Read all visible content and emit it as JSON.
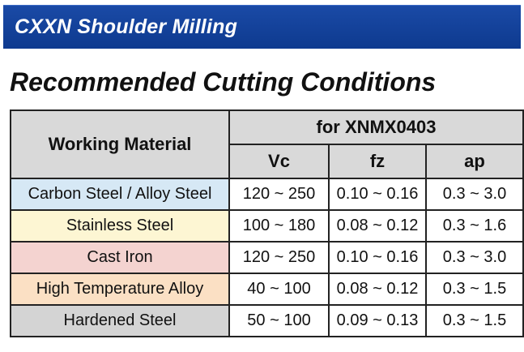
{
  "header": {
    "banner_title": "CXXN Shoulder Milling",
    "section_title": "Recommended Cutting Conditions"
  },
  "table": {
    "material_header": "Working Material",
    "group_header": "for XNMX0403",
    "columns": [
      "Vc",
      "fz",
      "ap"
    ],
    "rows": [
      {
        "material": "Carbon Steel / Alloy Steel",
        "color": "#d6e8f5",
        "vc": "120 ~ 250",
        "fz": "0.10 ~ 0.16",
        "ap": "0.3 ~ 3.0"
      },
      {
        "material": "Stainless Steel",
        "color": "#fdf6d3",
        "vc": "100 ~ 180",
        "fz": "0.08 ~ 0.12",
        "ap": "0.3 ~ 1.6"
      },
      {
        "material": "Cast Iron",
        "color": "#f4d3d0",
        "vc": "120 ~ 250",
        "fz": "0.10 ~ 0.16",
        "ap": "0.3 ~ 3.0"
      },
      {
        "material": "High Temperature Alloy",
        "color": "#fbe0c4",
        "vc": "40 ~ 100",
        "fz": "0.08 ~ 0.12",
        "ap": "0.3 ~ 1.5"
      },
      {
        "material": "Hardened Steel",
        "color": "#d4d4d4",
        "vc": "50 ~ 100",
        "fz": "0.09 ~ 0.13",
        "ap": "0.3 ~ 1.5"
      }
    ]
  }
}
